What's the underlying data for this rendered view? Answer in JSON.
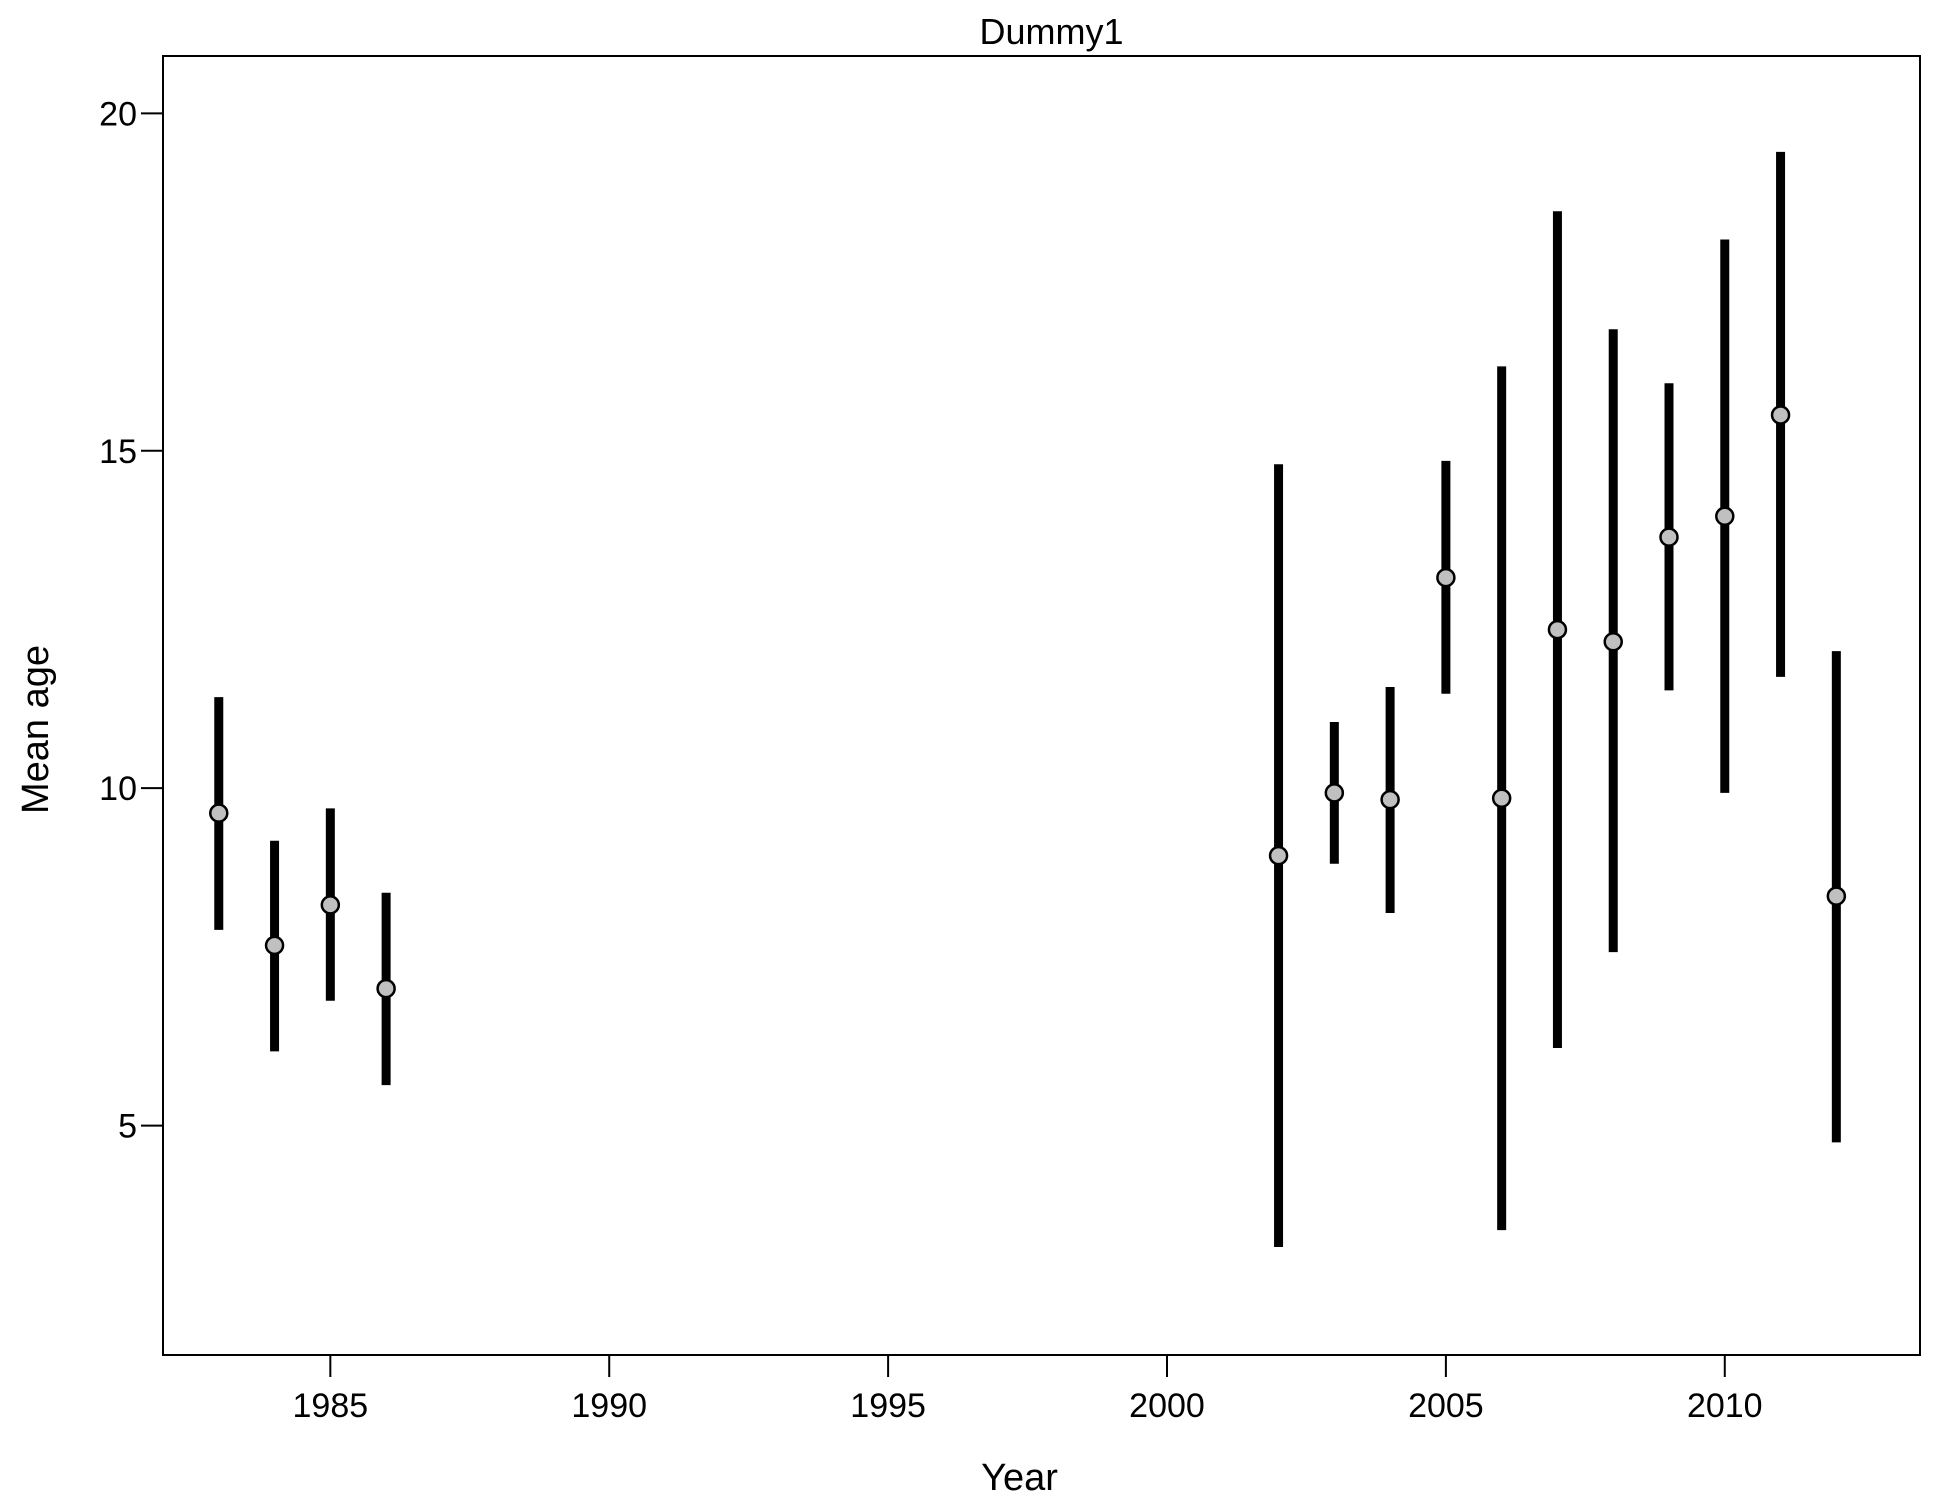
{
  "chart_data": {
    "type": "errorbar",
    "title": "Dummy1",
    "xlabel": "Year",
    "ylabel": "Mean age",
    "xlim": [
      1982,
      2013.5
    ],
    "ylim": [
      1.6,
      20.85
    ],
    "xticks": [
      1985,
      1990,
      1995,
      2000,
      2005,
      2010
    ],
    "yticks": [
      5,
      10,
      15,
      20
    ],
    "grid": false,
    "series": [
      {
        "points": [
          {
            "x": 1983,
            "y": 9.63,
            "lower": 7.9,
            "upper": 11.35
          },
          {
            "x": 1984,
            "y": 7.67,
            "lower": 6.1,
            "upper": 9.22
          },
          {
            "x": 1985,
            "y": 8.27,
            "lower": 6.85,
            "upper": 9.7
          },
          {
            "x": 1986,
            "y": 7.03,
            "lower": 5.6,
            "upper": 8.45
          },
          {
            "x": 2002,
            "y": 9.0,
            "lower": 3.2,
            "upper": 14.8
          },
          {
            "x": 2003,
            "y": 9.93,
            "lower": 8.88,
            "upper": 10.98
          },
          {
            "x": 2004,
            "y": 9.83,
            "lower": 8.15,
            "upper": 11.5
          },
          {
            "x": 2005,
            "y": 13.12,
            "lower": 11.4,
            "upper": 14.85
          },
          {
            "x": 2006,
            "y": 9.85,
            "lower": 3.45,
            "upper": 16.25
          },
          {
            "x": 2007,
            "y": 12.35,
            "lower": 6.15,
            "upper": 18.55
          },
          {
            "x": 2008,
            "y": 12.17,
            "lower": 7.57,
            "upper": 16.8
          },
          {
            "x": 2009,
            "y": 13.72,
            "lower": 11.45,
            "upper": 16.0
          },
          {
            "x": 2010,
            "y": 14.03,
            "lower": 9.93,
            "upper": 18.13
          },
          {
            "x": 2011,
            "y": 15.53,
            "lower": 11.65,
            "upper": 19.43
          },
          {
            "x": 2012,
            "y": 8.4,
            "lower": 4.75,
            "upper": 12.03
          }
        ]
      }
    ],
    "colors": {
      "bar": "#000000",
      "point_fill": "#c0c0c0",
      "point_stroke": "#000000",
      "axis": "#000000"
    }
  }
}
